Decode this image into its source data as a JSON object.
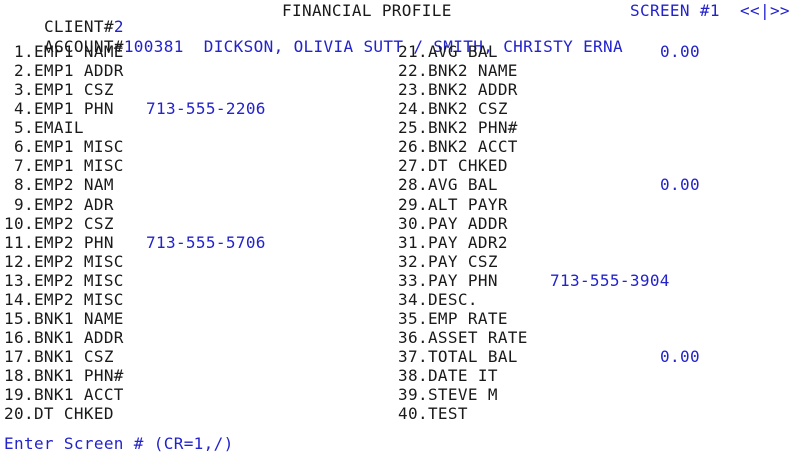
{
  "colors": {
    "background": "#ffffff",
    "text": "#1a1a1a",
    "accent_blue": "#2323cc"
  },
  "header": {
    "client_label": "CLIENT#",
    "client_number": "2",
    "title": "FINANCIAL PROFILE",
    "screen_label": "SCREEN #1",
    "pager": "<<|>>"
  },
  "account": {
    "label": "ACCOUNT#",
    "number": "100381",
    "names": "DICKSON, OLIVIA SUTT / SMITH, CHRISTY ERNA"
  },
  "fields": [
    {
      "n": 1,
      "label": "EMP1 NAME"
    },
    {
      "n": 2,
      "label": "EMP1 ADDR"
    },
    {
      "n": 3,
      "label": "EMP1 CSZ"
    },
    {
      "n": 4,
      "label": "EMP1 PHN",
      "value": "713-555-2206",
      "slot": "lp"
    },
    {
      "n": 5,
      "label": "EMAIL"
    },
    {
      "n": 6,
      "label": "EMP1 MISC"
    },
    {
      "n": 7,
      "label": "EMP1 MISC"
    },
    {
      "n": 8,
      "label": "EMP2 NAM"
    },
    {
      "n": 9,
      "label": "EMP2 ADR"
    },
    {
      "n": 10,
      "label": "EMP2 CSZ"
    },
    {
      "n": 11,
      "label": "EMP2 PHN",
      "value": "713-555-5706",
      "slot": "lp"
    },
    {
      "n": 12,
      "label": "EMP2 MISC"
    },
    {
      "n": 13,
      "label": "EMP2 MISC"
    },
    {
      "n": 14,
      "label": "EMP2 MISC"
    },
    {
      "n": 15,
      "label": "BNK1 NAME"
    },
    {
      "n": 16,
      "label": "BNK1 ADDR"
    },
    {
      "n": 17,
      "label": "BNK1 CSZ"
    },
    {
      "n": 18,
      "label": "BNK1 PHN#"
    },
    {
      "n": 19,
      "label": "BNK1 ACCT"
    },
    {
      "n": 20,
      "label": "DT CHKED"
    },
    {
      "n": 21,
      "label": "AVG BAL",
      "value": "0.00",
      "slot": "m"
    },
    {
      "n": 22,
      "label": "BNK2 NAME"
    },
    {
      "n": 23,
      "label": "BNK2 ADDR"
    },
    {
      "n": 24,
      "label": "BNK2 CSZ"
    },
    {
      "n": 25,
      "label": "BNK2 PHN#"
    },
    {
      "n": 26,
      "label": "BNK2 ACCT"
    },
    {
      "n": 27,
      "label": "DT CHKED"
    },
    {
      "n": 28,
      "label": "AVG BAL",
      "value": "0.00",
      "slot": "m"
    },
    {
      "n": 29,
      "label": "ALT PAYR"
    },
    {
      "n": 30,
      "label": "PAY ADDR"
    },
    {
      "n": 31,
      "label": "PAY ADR2"
    },
    {
      "n": 32,
      "label": "PAY CSZ"
    },
    {
      "n": 33,
      "label": "PAY PHN",
      "value": "713-555-3904",
      "slot": "rp"
    },
    {
      "n": 34,
      "label": "DESC."
    },
    {
      "n": 35,
      "label": "EMP RATE"
    },
    {
      "n": 36,
      "label": "ASSET RATE"
    },
    {
      "n": 37,
      "label": "TOTAL BAL",
      "value": "0.00",
      "slot": "m"
    },
    {
      "n": 38,
      "label": "DATE IT"
    },
    {
      "n": 39,
      "label": "STEVE M"
    },
    {
      "n": 40,
      "label": "TEST"
    }
  ],
  "prompt": "Enter Screen # (CR=1,/)"
}
